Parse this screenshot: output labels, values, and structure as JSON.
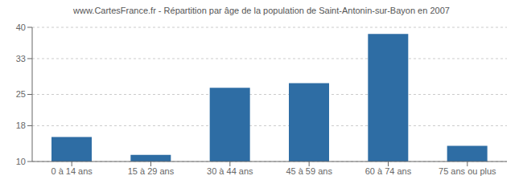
{
  "chart_data": {
    "type": "bar",
    "title": "www.CartesFrance.fr - Répartition par âge de la population de Saint-Antonin-sur-Bayon en 2007",
    "categories": [
      "0 à 14 ans",
      "15 à 29 ans",
      "30 à 44 ans",
      "45 à 59 ans",
      "60 à 74 ans",
      "75 ans ou plus"
    ],
    "values": [
      15.5,
      11.5,
      26.5,
      27.5,
      38.5,
      13.5
    ],
    "color": "#2e6da4",
    "ylim": [
      10,
      40
    ],
    "yticks": [
      10,
      18,
      25,
      33,
      40
    ],
    "grid": true
  }
}
